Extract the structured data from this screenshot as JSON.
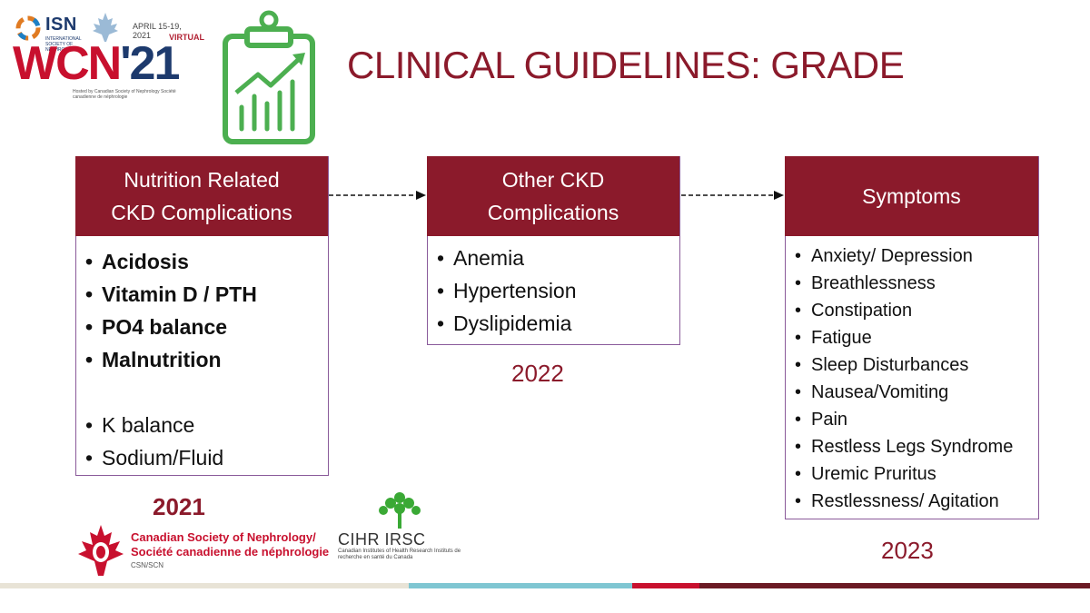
{
  "logo": {
    "isn": "ISN",
    "isn_sub": "INTERNATIONAL SOCIETY OF NEPHROLOGY",
    "dates": "APRIL 15-19, 2021",
    "virtual": "VIRTUAL",
    "wcn": "WCN",
    "wcn_year": "'21",
    "hosted": "Hosted by  Canadian Society of Nephrology  Société canadienne de néphrologie"
  },
  "title": "CLINICAL GUIDELINES: GRADE",
  "columns": [
    {
      "heading_line1": "Nutrition Related",
      "heading_line2": "CKD Complications",
      "items_bold": [
        "Acidosis",
        "Vitamin D / PTH",
        "PO4 balance",
        "Malnutrition"
      ],
      "items": [
        "K balance",
        "Sodium/Fluid"
      ],
      "year": "2021"
    },
    {
      "heading_line1": "Other CKD",
      "heading_line2": "Complications",
      "items": [
        "Anemia",
        "Hypertension",
        "Dyslipidemia"
      ],
      "year": "2022"
    },
    {
      "heading_line1": "Symptoms",
      "items": [
        "Anxiety/ Depression",
        "Breathlessness",
        "Constipation",
        "Fatigue",
        "Sleep Disturbances",
        "Nausea/Vomiting",
        "Pain",
        "Restless Legs Syndrome",
        "Uremic Pruritus",
        "Restlessness/ Agitation"
      ],
      "year": "2023"
    }
  ],
  "footer": {
    "csn_line1": "Canadian Society of Nephrology/",
    "csn_line2": "Société canadienne de néphrologie",
    "csn_line3": "CSN/SCN",
    "cihr": "CIHR IRSC",
    "cihr_sub": "Canadian Institutes of Health Research   Instituts de recherche en santé du Canada"
  },
  "colors": {
    "accent": "#8b1a2b",
    "icon_green": "#4caf50",
    "border": "#8a5a9a"
  }
}
